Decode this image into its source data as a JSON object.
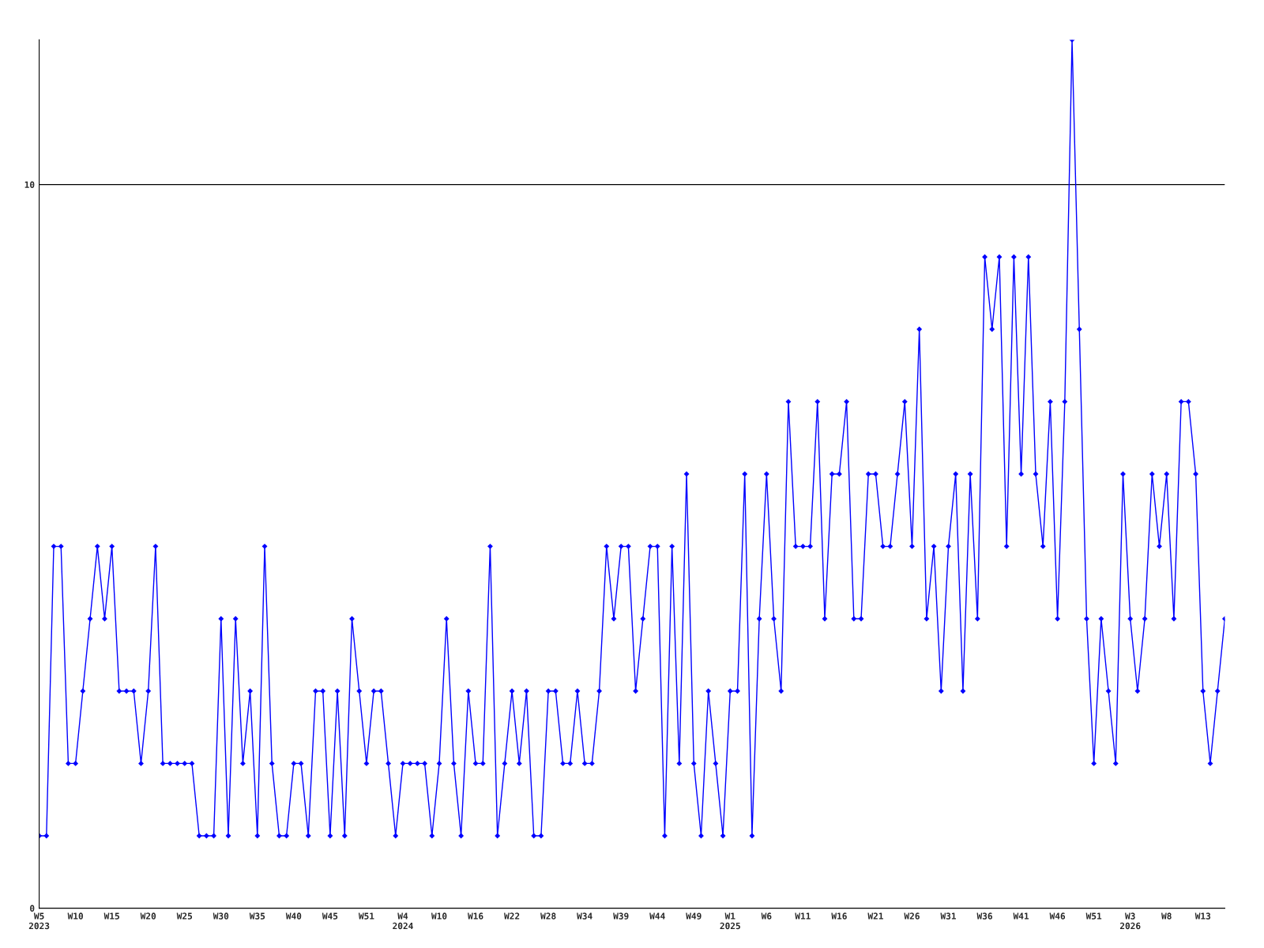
{
  "chart_data": {
    "type": "line",
    "categories": [
      "W5\n2023",
      null,
      null,
      null,
      null,
      "W10",
      null,
      null,
      null,
      null,
      "W15",
      null,
      null,
      null,
      null,
      "W20",
      null,
      null,
      null,
      null,
      "W25",
      null,
      null,
      null,
      null,
      "W30",
      null,
      null,
      null,
      null,
      "W35",
      null,
      null,
      null,
      null,
      "W40",
      null,
      null,
      null,
      null,
      "W45",
      null,
      null,
      null,
      null,
      "W51",
      null,
      null,
      null,
      null,
      "W4\n2024",
      null,
      null,
      null,
      null,
      "W10",
      null,
      null,
      null,
      null,
      "W16",
      null,
      null,
      null,
      null,
      "W22",
      null,
      null,
      null,
      null,
      "W28",
      null,
      null,
      null,
      null,
      "W34",
      null,
      null,
      null,
      null,
      "W39",
      null,
      null,
      null,
      null,
      "W44",
      null,
      null,
      null,
      null,
      "W49",
      null,
      null,
      null,
      null,
      "W1\n2025",
      null,
      null,
      null,
      null,
      "W6",
      null,
      null,
      null,
      null,
      "W11",
      null,
      null,
      null,
      null,
      "W16",
      null,
      null,
      null,
      null,
      "W21",
      null,
      null,
      null,
      null,
      "W26",
      null,
      null,
      null,
      null,
      "W31",
      null,
      null,
      null,
      null,
      "W36",
      null,
      null,
      null,
      null,
      "W41",
      null,
      null,
      null,
      null,
      "W46",
      null,
      null,
      null,
      null,
      "W51",
      null,
      null,
      null,
      null,
      "W3\n2026",
      null,
      null,
      null,
      null,
      "W8",
      null,
      null,
      null,
      null,
      "W13",
      null,
      null,
      null
    ],
    "series": [
      {
        "color": "#0000ff",
        "values": [
          1,
          1,
          5,
          5,
          2,
          2,
          3,
          4,
          5,
          4,
          5,
          3,
          3,
          3,
          2,
          3,
          5,
          2,
          2,
          2,
          2,
          2,
          1,
          1,
          1,
          4,
          1,
          4,
          2,
          3,
          1,
          5,
          2,
          1,
          1,
          2,
          2,
          1,
          3,
          3,
          1,
          3,
          1,
          4,
          3,
          2,
          3,
          3,
          2,
          1,
          2,
          2,
          2,
          2,
          1,
          2,
          4,
          2,
          1,
          3,
          2,
          2,
          5,
          1,
          2,
          3,
          2,
          3,
          1,
          1,
          3,
          3,
          2,
          2,
          3,
          2,
          2,
          3,
          5,
          4,
          5,
          5,
          3,
          4,
          5,
          5,
          1,
          5,
          2,
          6,
          2,
          1,
          3,
          2,
          1,
          3,
          3,
          6,
          1,
          4,
          6,
          4,
          3,
          7,
          5,
          5,
          5,
          7,
          4,
          6,
          6,
          7,
          4,
          4,
          6,
          6,
          5,
          5,
          6,
          7,
          5,
          8,
          4,
          5,
          3,
          5,
          6,
          3,
          6,
          4,
          9,
          8,
          9,
          5,
          9,
          6,
          9,
          6,
          5,
          7,
          4,
          7,
          12,
          8,
          4,
          2,
          4,
          3,
          2,
          6,
          4,
          3,
          4,
          6,
          5,
          6,
          4,
          7,
          7,
          6,
          3,
          2,
          3,
          4
        ]
      }
    ],
    "ylim": [
      0,
      12
    ],
    "yticks": [
      0,
      10
    ],
    "grid": "y",
    "marker": "diamond",
    "line_style": "solid",
    "legend": false
  }
}
